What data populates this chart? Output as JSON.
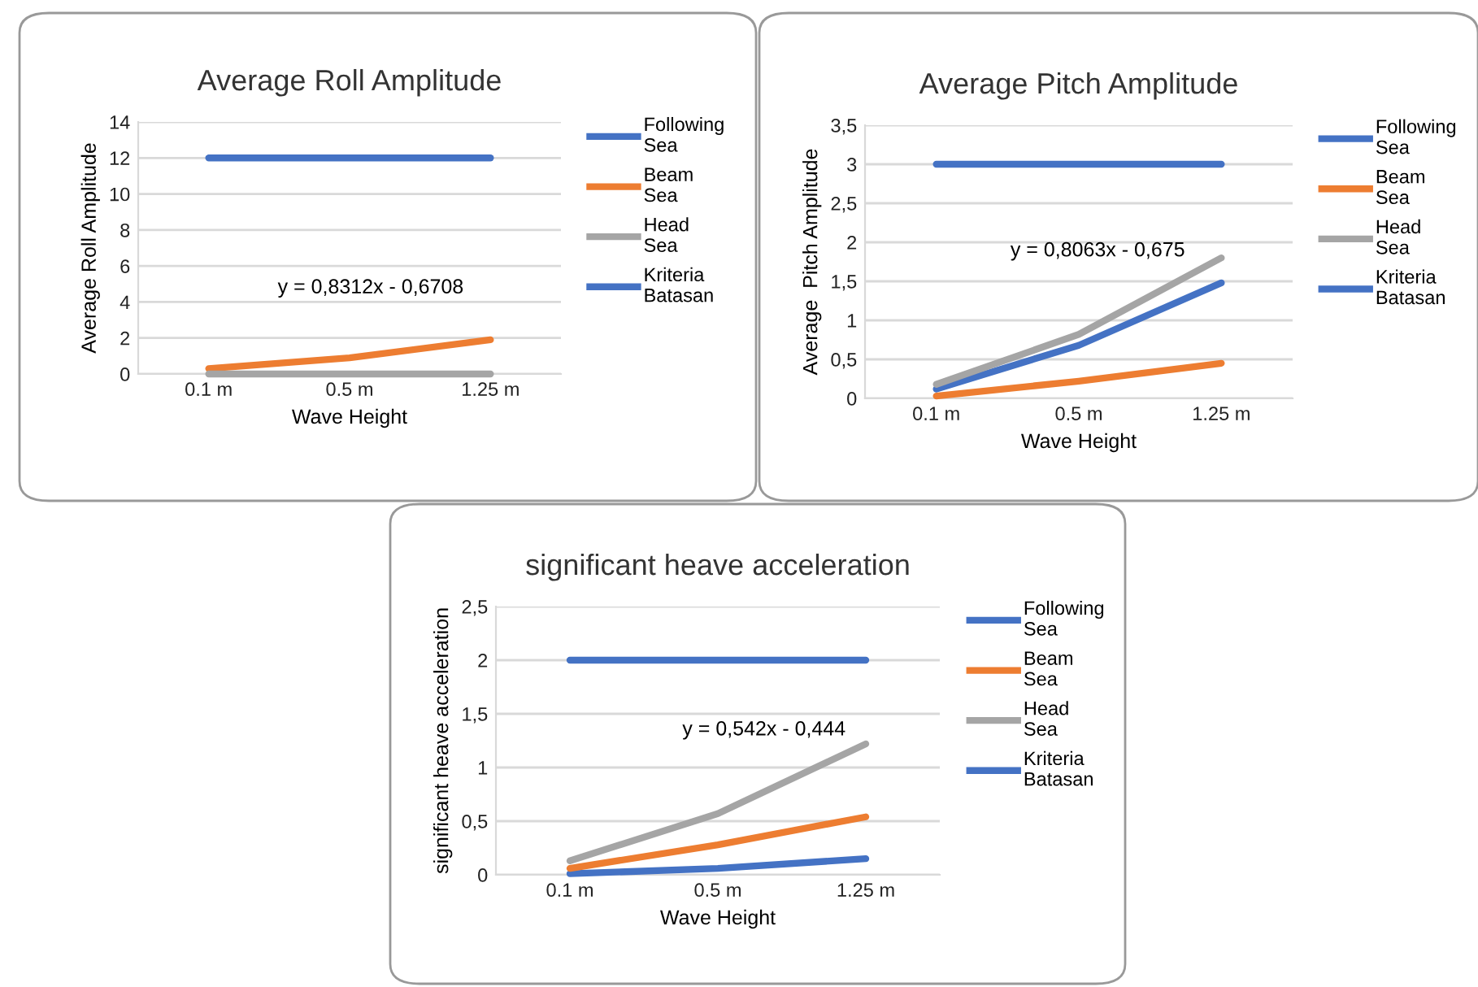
{
  "chart_data": [
    {
      "type": "line",
      "title": "Average Roll Amplitude",
      "xlabel": "Wave Height",
      "ylabel": "Average Roll Amplitude",
      "categories": [
        "0.1 m",
        "0.5 m",
        "1.25 m"
      ],
      "series": [
        {
          "name": "Following Sea",
          "color": "#4472c4",
          "values": [
            null,
            null,
            null
          ]
        },
        {
          "name": "Beam Sea",
          "color": "#ed7d31",
          "values": [
            0.3,
            0.9,
            1.9
          ]
        },
        {
          "name": "Head Sea",
          "color": "#a5a5a5",
          "values": [
            0,
            0,
            0
          ]
        },
        {
          "name": "Kriteria Batasan",
          "color": "#4472c4",
          "values": [
            12,
            12,
            12
          ]
        }
      ],
      "ylim": [
        0,
        14
      ],
      "yticks": [
        0,
        2,
        4,
        6,
        8,
        10,
        12,
        14
      ],
      "grid": "y",
      "legend": "right",
      "annotations": [
        "y = 0,8312x - 0,6708"
      ]
    },
    {
      "type": "line",
      "title": "Average Pitch Amplitude",
      "xlabel": "Wave Height",
      "ylabel": "Average  Pitch Amplitude",
      "categories": [
        "0.1 m",
        "0.5 m",
        "1.25 m"
      ],
      "series": [
        {
          "name": "Following Sea",
          "color": "#4472c4",
          "values": [
            0.12,
            0.68,
            1.48
          ]
        },
        {
          "name": "Beam Sea",
          "color": "#ed7d31",
          "values": [
            0.03,
            0.22,
            0.45
          ]
        },
        {
          "name": "Head Sea",
          "color": "#a5a5a5",
          "values": [
            0.18,
            0.82,
            1.8
          ]
        },
        {
          "name": "Kriteria Batasan",
          "color": "#4472c4",
          "values": [
            3,
            3,
            3
          ]
        }
      ],
      "ylim": [
        0,
        3.5
      ],
      "yticks": [
        0,
        {
          "value": 0.5,
          "label": "0,5"
        },
        1,
        {
          "value": 1.5,
          "label": "1,5"
        },
        2,
        {
          "value": 2.5,
          "label": "2,5"
        },
        3,
        {
          "value": 3.5,
          "label": "3,5"
        }
      ],
      "grid": "y",
      "legend": "right",
      "annotations": [
        "y = 0,8063x - 0,675"
      ]
    },
    {
      "type": "line",
      "title": "significant heave acceleration",
      "xlabel": "Wave Height",
      "ylabel": "significant heave acceleration",
      "categories": [
        "0.1 m",
        "0.5 m",
        "1.25 m"
      ],
      "series": [
        {
          "name": "Following Sea",
          "color": "#4472c4",
          "values": [
            0.01,
            0.06,
            0.15
          ]
        },
        {
          "name": "Beam Sea",
          "color": "#ed7d31",
          "values": [
            0.06,
            0.28,
            0.54
          ]
        },
        {
          "name": "Head Sea",
          "color": "#a5a5a5",
          "values": [
            0.13,
            0.57,
            1.22
          ]
        },
        {
          "name": "Kriteria Batasan",
          "color": "#4472c4",
          "values": [
            2,
            2,
            2
          ]
        }
      ],
      "ylim": [
        0,
        2.5
      ],
      "yticks": [
        0,
        {
          "value": 0.5,
          "label": "0,5"
        },
        1,
        {
          "value": 1.5,
          "label": "1,5"
        },
        2,
        {
          "value": 2.5,
          "label": "2,5"
        }
      ],
      "grid": "y",
      "legend": "right",
      "annotations": [
        "y = 0,542x - 0,444"
      ]
    }
  ]
}
